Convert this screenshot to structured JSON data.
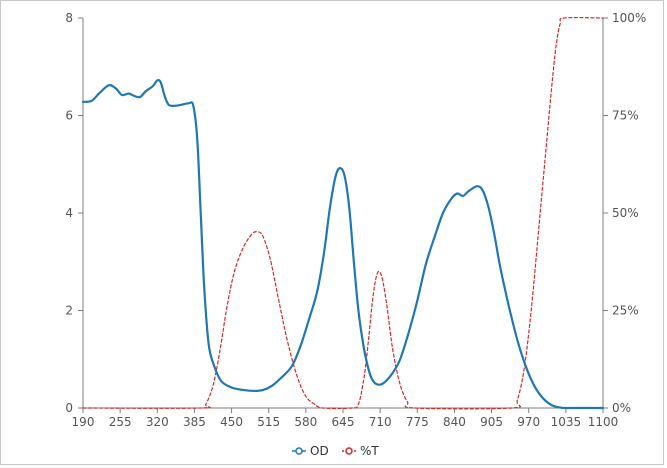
{
  "chart_data": {
    "type": "line",
    "title": "",
    "xlabel": "",
    "ylabel_left": "",
    "ylabel_right": "",
    "x_ticks": [
      "190",
      "255",
      "320",
      "385",
      "450",
      "515",
      "580",
      "645",
      "710",
      "775",
      "840",
      "905",
      "970",
      "1035",
      "1100"
    ],
    "xlim": [
      190,
      1100
    ],
    "y_left_ticks": [
      "0",
      "2",
      "4",
      "6",
      "8"
    ],
    "ylim_left": [
      0,
      8
    ],
    "y_right_ticks": [
      "0%",
      "25%",
      "50%",
      "75%",
      "100%"
    ],
    "ylim_right": [
      0,
      100
    ],
    "grid": false,
    "legend_position": "bottom-center",
    "series": [
      {
        "name": "OD",
        "axis": "left",
        "color": "#1f77b4",
        "style": "solid",
        "points": [
          [
            190,
            6.28
          ],
          [
            205,
            6.3
          ],
          [
            218,
            6.45
          ],
          [
            235,
            6.62
          ],
          [
            248,
            6.55
          ],
          [
            258,
            6.42
          ],
          [
            270,
            6.45
          ],
          [
            280,
            6.4
          ],
          [
            290,
            6.38
          ],
          [
            300,
            6.5
          ],
          [
            312,
            6.6
          ],
          [
            320,
            6.72
          ],
          [
            326,
            6.68
          ],
          [
            333,
            6.4
          ],
          [
            340,
            6.22
          ],
          [
            352,
            6.2
          ],
          [
            362,
            6.22
          ],
          [
            375,
            6.25
          ],
          [
            383,
            6.2
          ],
          [
            390,
            5.5
          ],
          [
            396,
            4.0
          ],
          [
            402,
            2.5
          ],
          [
            410,
            1.3
          ],
          [
            420,
            0.85
          ],
          [
            432,
            0.55
          ],
          [
            450,
            0.42
          ],
          [
            470,
            0.37
          ],
          [
            490,
            0.35
          ],
          [
            505,
            0.37
          ],
          [
            520,
            0.45
          ],
          [
            535,
            0.6
          ],
          [
            555,
            0.85
          ],
          [
            570,
            1.25
          ],
          [
            585,
            1.8
          ],
          [
            600,
            2.4
          ],
          [
            612,
            3.2
          ],
          [
            622,
            4.1
          ],
          [
            632,
            4.75
          ],
          [
            640,
            4.92
          ],
          [
            648,
            4.75
          ],
          [
            656,
            4.1
          ],
          [
            664,
            3.0
          ],
          [
            672,
            2.0
          ],
          [
            682,
            1.2
          ],
          [
            692,
            0.7
          ],
          [
            700,
            0.52
          ],
          [
            710,
            0.48
          ],
          [
            720,
            0.55
          ],
          [
            732,
            0.72
          ],
          [
            745,
            1.0
          ],
          [
            760,
            1.55
          ],
          [
            775,
            2.2
          ],
          [
            790,
            2.95
          ],
          [
            805,
            3.5
          ],
          [
            820,
            4.0
          ],
          [
            835,
            4.3
          ],
          [
            845,
            4.4
          ],
          [
            855,
            4.35
          ],
          [
            865,
            4.45
          ],
          [
            880,
            4.55
          ],
          [
            890,
            4.45
          ],
          [
            900,
            4.1
          ],
          [
            910,
            3.55
          ],
          [
            920,
            2.9
          ],
          [
            935,
            2.1
          ],
          [
            950,
            1.4
          ],
          [
            965,
            0.85
          ],
          [
            980,
            0.45
          ],
          [
            995,
            0.2
          ],
          [
            1010,
            0.06
          ],
          [
            1025,
            0.01
          ],
          [
            1040,
            0.0
          ],
          [
            1100,
            0.0
          ]
        ]
      },
      {
        "name": "%T",
        "axis": "right",
        "color": "#d62728",
        "style": "dashed",
        "points": [
          [
            190,
            0
          ],
          [
            395,
            0
          ],
          [
            405,
            1
          ],
          [
            418,
            6
          ],
          [
            430,
            15
          ],
          [
            442,
            26
          ],
          [
            455,
            35
          ],
          [
            470,
            41
          ],
          [
            485,
            44.5
          ],
          [
            495,
            45.2
          ],
          [
            505,
            44
          ],
          [
            518,
            38
          ],
          [
            532,
            28
          ],
          [
            548,
            17
          ],
          [
            565,
            8
          ],
          [
            580,
            3
          ],
          [
            595,
            1
          ],
          [
            610,
            0
          ],
          [
            660,
            0
          ],
          [
            672,
            1
          ],
          [
            682,
            8
          ],
          [
            690,
            18
          ],
          [
            697,
            28
          ],
          [
            703,
            33.5
          ],
          [
            708,
            35
          ],
          [
            714,
            33
          ],
          [
            722,
            26
          ],
          [
            732,
            15
          ],
          [
            745,
            6
          ],
          [
            758,
            1.5
          ],
          [
            770,
            0
          ],
          [
            940,
            0
          ],
          [
            950,
            2
          ],
          [
            962,
            10
          ],
          [
            975,
            26
          ],
          [
            990,
            50
          ],
          [
            1000,
            66
          ],
          [
            1010,
            82
          ],
          [
            1018,
            93
          ],
          [
            1025,
            98.5
          ],
          [
            1032,
            100
          ],
          [
            1100,
            100
          ]
        ]
      }
    ]
  }
}
